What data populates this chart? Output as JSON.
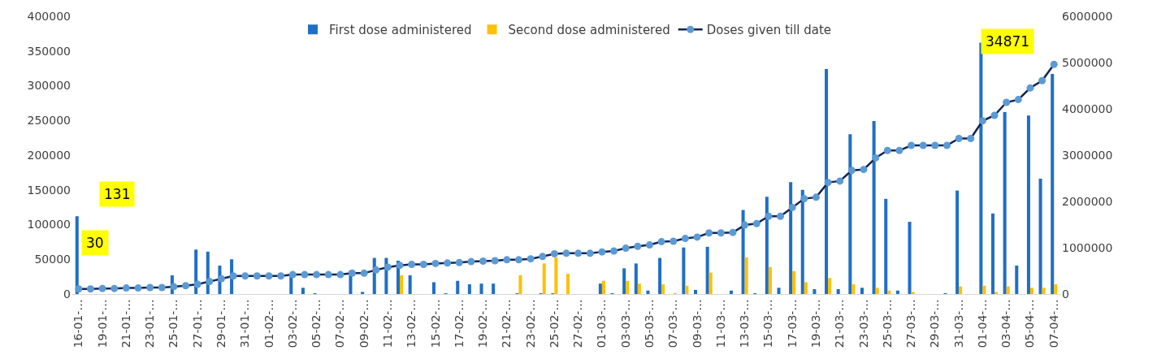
{
  "chart_data": {
    "type": "bar",
    "categories": [
      "16-01-…",
      null,
      "19-01-…",
      null,
      "21-01-…",
      null,
      "23-01-…",
      null,
      "25-01-…",
      null,
      "27-01-…",
      null,
      "29-01-…",
      null,
      "31-01-…",
      null,
      "01-02-…",
      null,
      "03-02-…",
      null,
      "05-02-…",
      null,
      "07-02-…",
      null,
      "09-02-…",
      null,
      "11-02-…",
      null,
      "13-02-…",
      null,
      "15-02-…",
      null,
      "17-02-…",
      null,
      "19-02-…",
      null,
      "21-02-…",
      null,
      "23-02-…",
      null,
      "25-02-…",
      null,
      "27-02-…",
      null,
      "01-03-…",
      null,
      "03-03-…",
      null,
      "05-03-…",
      null,
      "07-03-…",
      null,
      "09-03-…",
      null,
      "11-03-…",
      null,
      "13-03-…",
      null,
      "15-03-…",
      null,
      "17-03-…",
      null,
      "19-03-…",
      null,
      "21-03-…",
      null,
      "23-03-…",
      null,
      "25-03-…",
      null,
      "27-03-…",
      null,
      "29-03-…",
      null,
      "31-03-…",
      null,
      "01-04-…",
      null,
      "03-04-…",
      null,
      "05-04-…",
      null,
      "07-04-…"
    ],
    "series": [
      {
        "name": "First dose administered",
        "color": "#1f6fc5",
        "values": [
          112000,
          0,
          0,
          0,
          0,
          0,
          0,
          0,
          27000,
          0,
          64000,
          61000,
          41000,
          50000,
          0,
          0,
          0,
          0,
          26000,
          9000,
          1000,
          0,
          0,
          34000,
          3000,
          52000,
          52000,
          48000,
          27000,
          0,
          17000,
          1000,
          19000,
          14000,
          15000,
          15000,
          0,
          1000,
          0,
          1000,
          1000,
          0,
          0,
          0,
          15000,
          1000,
          37000,
          44000,
          5000,
          52000,
          0,
          67000,
          6000,
          68000,
          0,
          5000,
          121000,
          1000,
          140000,
          9000,
          161000,
          150000,
          7000,
          324000,
          7000,
          230000,
          9000,
          249000,
          137000,
          5000,
          104000,
          0,
          0,
          1000,
          149000,
          0,
          362000,
          116000,
          262000,
          41000,
          257000,
          166000,
          317000
        ]
      },
      {
        "name": "Second dose administered",
        "color": "#ffc000",
        "values": [
          0,
          0,
          0,
          0,
          0,
          0,
          0,
          0,
          0,
          0,
          0,
          0,
          0,
          0,
          0,
          0,
          0,
          0,
          0,
          0,
          0,
          0,
          0,
          0,
          0,
          0,
          0,
          27000,
          0,
          0,
          0,
          0,
          0,
          0,
          0,
          0,
          0,
          27000,
          0,
          44000,
          53000,
          29000,
          0,
          0,
          19000,
          0,
          19000,
          15000,
          0,
          14000,
          1000,
          12000,
          0,
          31000,
          0,
          0,
          53000,
          0,
          39000,
          0,
          33000,
          17000,
          0,
          23000,
          0,
          14000,
          0,
          9000,
          5000,
          0,
          3000,
          0,
          0,
          0,
          11000,
          0,
          12000,
          3000,
          11000,
          0,
          9000,
          9000,
          14000
        ]
      },
      {
        "name": "Doses given till date",
        "type": "line",
        "axis": "y2",
        "color": "#14224f",
        "values": [
          110000,
          110000,
          120000,
          120000,
          130000,
          130000,
          140000,
          140000,
          160000,
          180000,
          210000,
          270000,
          330000,
          390000,
          390000,
          390000,
          390000,
          390000,
          420000,
          420000,
          420000,
          420000,
          420000,
          450000,
          450000,
          520000,
          580000,
          620000,
          640000,
          640000,
          660000,
          670000,
          680000,
          700000,
          710000,
          720000,
          740000,
          740000,
          760000,
          810000,
          870000,
          880000,
          880000,
          880000,
          910000,
          930000,
          990000,
          1030000,
          1060000,
          1130000,
          1140000,
          1200000,
          1230000,
          1320000,
          1320000,
          1330000,
          1490000,
          1520000,
          1680000,
          1680000,
          1870000,
          2060000,
          2090000,
          2410000,
          2440000,
          2670000,
          2690000,
          2940000,
          3100000,
          3100000,
          3210000,
          3210000,
          3210000,
          3210000,
          3360000,
          3360000,
          3740000,
          3860000,
          4140000,
          4200000,
          4450000,
          4610000,
          4960000
        ]
      }
    ],
    "ylim": [
      0,
      400000
    ],
    "yticks": [
      0,
      50000,
      100000,
      150000,
      200000,
      250000,
      300000,
      350000,
      400000
    ],
    "y2lim": [
      0,
      6000000
    ],
    "y2ticks": [
      0,
      1000000,
      2000000,
      3000000,
      4000000,
      5000000,
      6000000
    ],
    "marker": "circle",
    "line_style": "solid",
    "legend": "top",
    "annotations": [
      "131",
      "30",
      "34871"
    ]
  }
}
